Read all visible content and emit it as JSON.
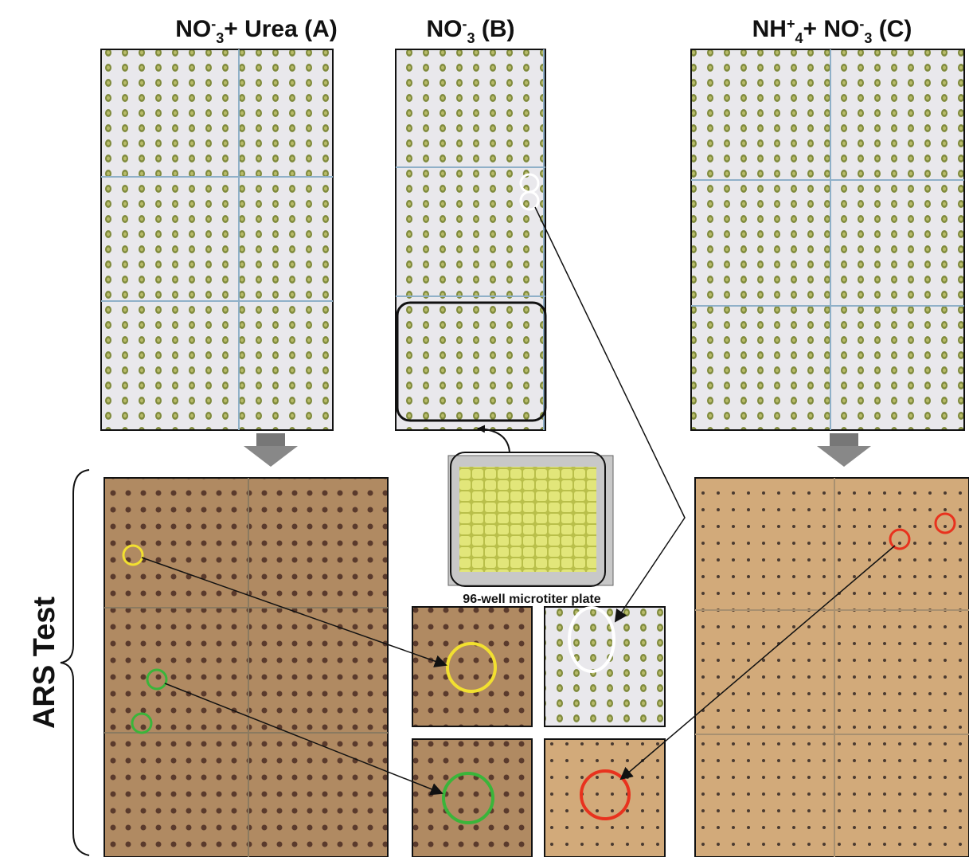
{
  "panels": [
    {
      "title": [
        {
          "text": "NO"
        },
        {
          "sup": "-"
        },
        {
          "sub": "3"
        },
        {
          "text": "+ Urea (A)"
        }
      ]
    },
    {
      "title": [
        {
          "text": "NO"
        },
        {
          "sup": "-"
        },
        {
          "sub": "3"
        },
        {
          "text": " (B)"
        }
      ]
    },
    {
      "title": [
        {
          "text": "NH"
        },
        {
          "sup": "+"
        },
        {
          "sub": "4"
        },
        {
          "text": "+ NO"
        },
        {
          "sup": "-"
        },
        {
          "sub": "3"
        },
        {
          "text": " (C)"
        }
      ]
    }
  ],
  "side_label": "ARS Test",
  "plate_label": "96-well microtiter plate"
}
